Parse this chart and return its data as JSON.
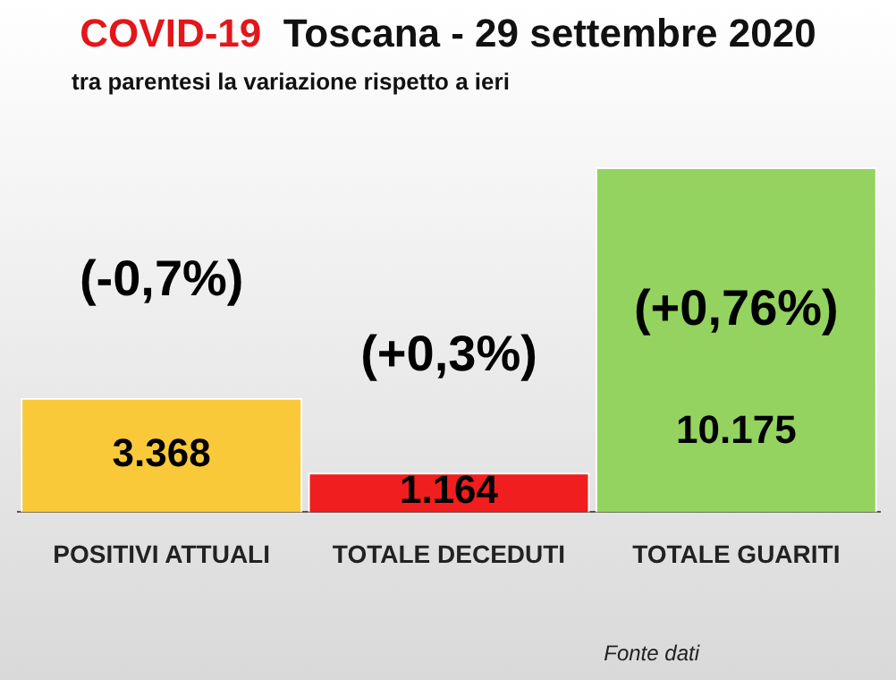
{
  "chart_data": {
    "type": "bar",
    "title": "COVID-19 Toscana - 29 settembre 2020",
    "subtitle": "tra parentesi la variazione rispetto a ieri",
    "categories": [
      "POSITIVI ATTUALI",
      "TOTALE DECEDUTI",
      "TOTALE GUARITI"
    ],
    "values": [
      3368,
      1164,
      10175
    ],
    "colors": [
      "#f9c93a",
      "#f01e1e",
      "#94d35f"
    ],
    "value_labels": [
      "3.368",
      "1.164",
      "10.175"
    ],
    "annotations": [
      "(-0,7%)",
      "(+0,3%)",
      "(+0,76%)",
      "Fonte dati"
    ],
    "grid": false,
    "legend": false
  }
}
